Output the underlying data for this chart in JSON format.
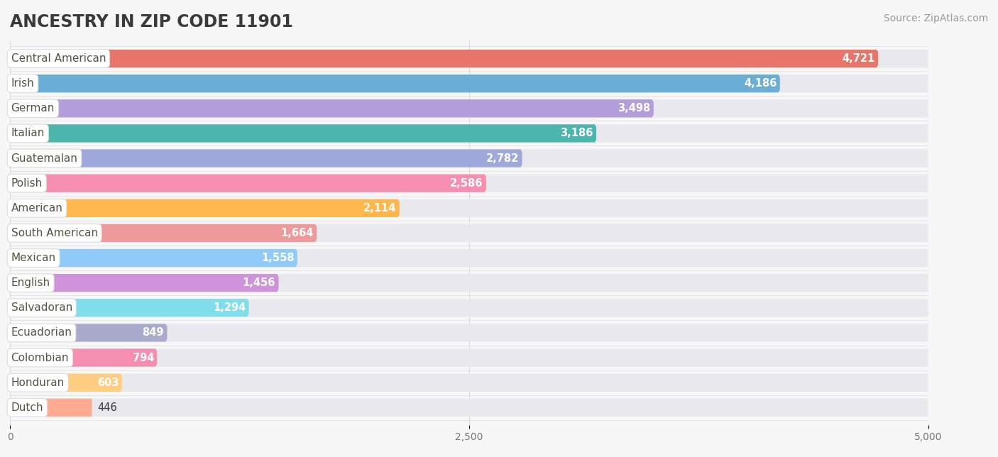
{
  "title": "ANCESTRY IN ZIP CODE 11901",
  "source": "Source: ZipAtlas.com",
  "categories": [
    "Central American",
    "Irish",
    "German",
    "Italian",
    "Guatemalan",
    "Polish",
    "American",
    "South American",
    "Mexican",
    "English",
    "Salvadoran",
    "Ecuadorian",
    "Colombian",
    "Honduran",
    "Dutch"
  ],
  "values": [
    4721,
    4186,
    3498,
    3186,
    2782,
    2586,
    2114,
    1664,
    1558,
    1456,
    1294,
    849,
    794,
    603,
    446
  ],
  "bar_colors": [
    "#E8756A",
    "#6AAED6",
    "#B39DDB",
    "#4DB6AC",
    "#9FA8DA",
    "#F48FB1",
    "#FFB74D",
    "#EF9A9A",
    "#90CAF9",
    "#CE93D8",
    "#80DEEA",
    "#AAAACC",
    "#F48FB1",
    "#FFCC80",
    "#FFAB91"
  ],
  "track_color": "#E8E8EE",
  "xlim": [
    0,
    5000
  ],
  "xticks": [
    0,
    2500,
    5000
  ],
  "bar_height": 0.72,
  "background_color": "#f7f7f7",
  "plot_bg_color": "#f7f7f7",
  "title_color": "#3a3a3a",
  "value_text_color": "#ffffff",
  "label_text_color": "#555544",
  "title_fontsize": 17,
  "source_fontsize": 10,
  "label_fontsize": 11,
  "value_fontsize": 10.5
}
